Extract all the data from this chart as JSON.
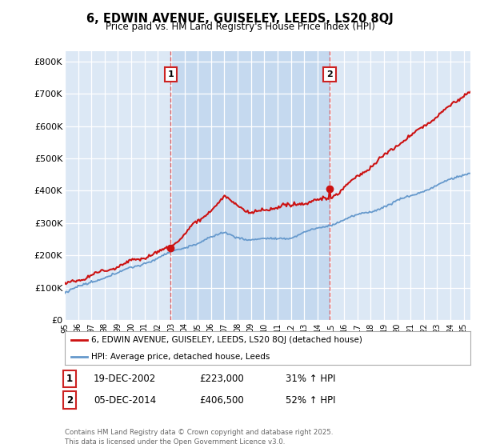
{
  "title": "6, EDWIN AVENUE, GUISELEY, LEEDS, LS20 8QJ",
  "subtitle": "Price paid vs. HM Land Registry's House Price Index (HPI)",
  "ylabel_ticks": [
    "£0",
    "£100K",
    "£200K",
    "£300K",
    "£400K",
    "£500K",
    "£600K",
    "£700K",
    "£800K"
  ],
  "ytick_values": [
    0,
    100000,
    200000,
    300000,
    400000,
    500000,
    600000,
    700000,
    800000
  ],
  "ylim": [
    0,
    830000
  ],
  "plot_bg_color": "#dce8f5",
  "fig_bg_color": "#ffffff",
  "grid_color": "#ffffff",
  "shade_color": "#c5d9ef",
  "red_color": "#cc1111",
  "blue_color": "#6699cc",
  "marker1_date": "19-DEC-2002",
  "marker1_price": 223000,
  "marker1_pct": "31%",
  "marker2_date": "05-DEC-2014",
  "marker2_price": 406500,
  "marker2_pct": "52%",
  "sale1_year": 2002.96,
  "sale2_year": 2014.92,
  "legend_label_red": "6, EDWIN AVENUE, GUISELEY, LEEDS, LS20 8QJ (detached house)",
  "legend_label_blue": "HPI: Average price, detached house, Leeds",
  "footer": "Contains HM Land Registry data © Crown copyright and database right 2025.\nThis data is licensed under the Open Government Licence v3.0.",
  "x_start_year": 1995,
  "x_end_year": 2025.5
}
